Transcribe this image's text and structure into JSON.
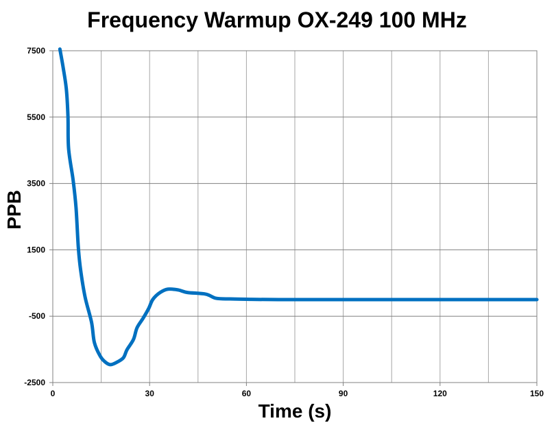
{
  "chart_data": {
    "type": "line",
    "title": "Frequency Warmup OX-249 100 MHz",
    "xlabel": "Time (s)",
    "ylabel": "PPB",
    "xlim": [
      0,
      150
    ],
    "ylim": [
      -2500,
      7500
    ],
    "x_ticks": [
      0,
      30,
      60,
      90,
      120,
      150
    ],
    "x_gridlines_every": 15,
    "y_ticks": [
      7500,
      5500,
      3500,
      1500,
      -500,
      -2500
    ],
    "y_tick_labels": [
      "7500",
      "5500",
      "3500",
      "1500",
      "-500",
      "-2500"
    ],
    "x_tick_labels": [
      "0",
      "30",
      "60",
      "90",
      "120",
      "150"
    ],
    "grid": true,
    "legend": "none",
    "line_color": "#0070C0",
    "series": [
      {
        "x": [
          2.2,
          3.2,
          4.2,
          4.7,
          4.9,
          6.3,
          7.2,
          7.9,
          8.6,
          10,
          12,
          12.9,
          14.8,
          16.5,
          18,
          20,
          21.9,
          23,
          25,
          26.1,
          28,
          29.7,
          31,
          33.2,
          35.7,
          38.9,
          41.7,
          47.4,
          50.6,
          55,
          60,
          70,
          90,
          120,
          150
        ],
        "y": [
          7550,
          7000,
          6340,
          5520,
          4550,
          3600,
          2770,
          1590,
          910,
          80,
          -680,
          -1300,
          -1720,
          -1900,
          -1960,
          -1880,
          -1750,
          -1510,
          -1200,
          -850,
          -560,
          -270,
          5,
          210,
          315,
          290,
          215,
          165,
          40,
          20,
          10,
          0,
          0,
          0,
          0
        ]
      }
    ]
  }
}
